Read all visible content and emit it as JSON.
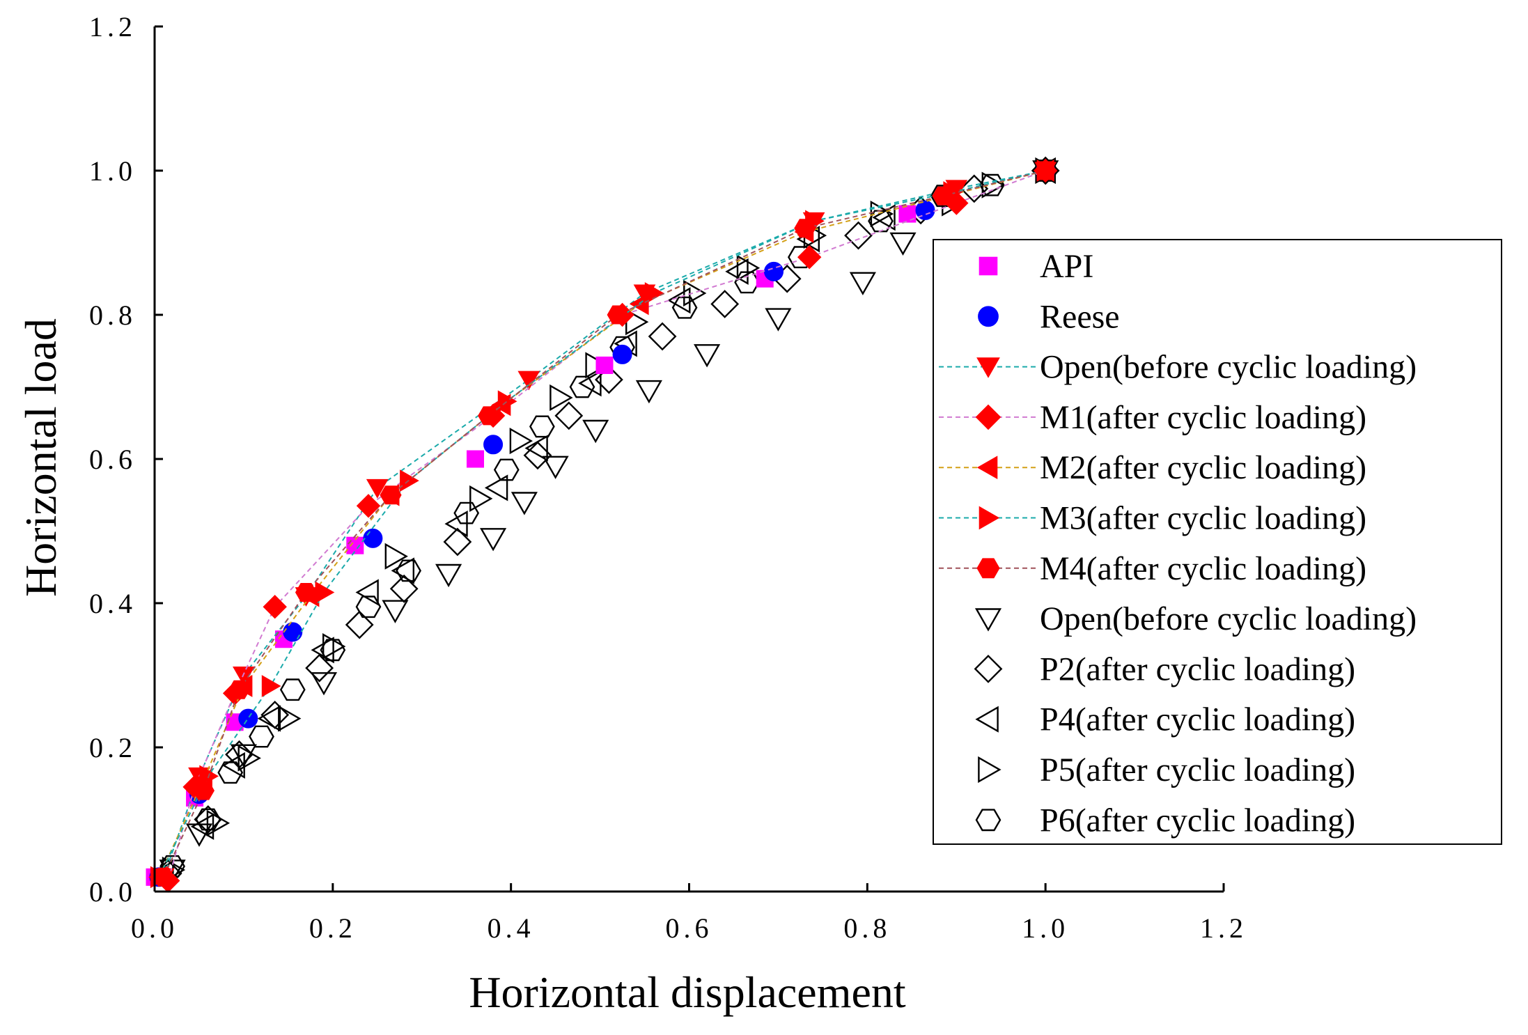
{
  "chart_data": {
    "type": "line",
    "title": "",
    "xlabel": "Horizontal displacement",
    "ylabel": "Horizontal load",
    "xlim": [
      0,
      1.2
    ],
    "ylim": [
      0,
      1.2
    ],
    "xticks": [
      "0.0",
      "0.2",
      "0.4",
      "0.6",
      "0.8",
      "1.0",
      "1.2"
    ],
    "yticks": [
      "0.0",
      "0.2",
      "0.4",
      "0.6",
      "0.8",
      "1.0",
      "1.2"
    ],
    "grid": false,
    "legend_position": "right",
    "series": [
      {
        "name": "API",
        "marker": "square",
        "filled": true,
        "color": "#ff00ff",
        "line": false,
        "x": [
          0.0,
          0.045,
          0.09,
          0.145,
          0.225,
          0.36,
          0.505,
          0.685,
          0.845,
          1.0
        ],
        "y": [
          0.02,
          0.13,
          0.235,
          0.35,
          0.48,
          0.6,
          0.73,
          0.85,
          0.94,
          1.0
        ]
      },
      {
        "name": "Reese",
        "marker": "circle",
        "filled": true,
        "color": "#0000ff",
        "line": false,
        "x": [
          0.005,
          0.05,
          0.105,
          0.155,
          0.245,
          0.38,
          0.525,
          0.695,
          0.865,
          1.0
        ],
        "y": [
          0.02,
          0.135,
          0.24,
          0.36,
          0.49,
          0.62,
          0.745,
          0.86,
          0.945,
          1.0
        ]
      },
      {
        "name": "Open(before cyclic  loading)",
        "marker": "triangle-down",
        "filled": true,
        "color": "#ff0000",
        "line": true,
        "line_color": "#1aaaaa",
        "x": [
          0.01,
          0.05,
          0.1,
          0.17,
          0.25,
          0.42,
          0.55,
          0.74,
          0.9,
          1.0
        ],
        "y": [
          0.02,
          0.16,
          0.3,
          0.41,
          0.56,
          0.71,
          0.83,
          0.93,
          0.975,
          1.0
        ]
      },
      {
        "name": "M1(after cyclic  loading)",
        "marker": "diamond",
        "filled": true,
        "color": "#ff0000",
        "line": true,
        "line_color": "#d17ad1",
        "x": [
          0.015,
          0.045,
          0.09,
          0.135,
          0.24,
          0.38,
          0.525,
          0.735,
          0.9,
          1.0
        ],
        "y": [
          0.015,
          0.145,
          0.275,
          0.395,
          0.535,
          0.66,
          0.8,
          0.88,
          0.955,
          1.0
        ]
      },
      {
        "name": "M2(after cyclic loading)",
        "marker": "triangle-left",
        "filled": true,
        "color": "#ff0000",
        "line": true,
        "line_color": "#d4a017",
        "x": [
          0.005,
          0.055,
          0.1,
          0.175,
          0.265,
          0.39,
          0.545,
          0.73,
          0.89,
          1.0
        ],
        "y": [
          0.02,
          0.155,
          0.285,
          0.41,
          0.55,
          0.675,
          0.815,
          0.915,
          0.965,
          1.0
        ]
      },
      {
        "name": "M3(after cyclic  loading)",
        "marker": "triangle-right",
        "filled": true,
        "color": "#ff0000",
        "line": true,
        "line_color": "#1aaaaa",
        "x": [
          0.005,
          0.06,
          0.13,
          0.19,
          0.285,
          0.395,
          0.56,
          0.74,
          0.895,
          1.0
        ],
        "y": [
          0.02,
          0.16,
          0.285,
          0.415,
          0.57,
          0.68,
          0.83,
          0.93,
          0.97,
          1.0
        ]
      },
      {
        "name": "M4(after cyclic loading)",
        "marker": "hexagon",
        "filled": true,
        "color": "#ff0000",
        "line": true,
        "line_color": "#a0525a",
        "x": [
          0.01,
          0.055,
          0.095,
          0.17,
          0.265,
          0.375,
          0.52,
          0.73,
          0.885,
          1.0
        ],
        "y": [
          0.02,
          0.14,
          0.28,
          0.415,
          0.55,
          0.66,
          0.8,
          0.92,
          0.965,
          1.0
        ]
      },
      {
        "name": "Open(before cyclic  loading)",
        "marker": "triangle-down",
        "filled": false,
        "color": "#000000",
        "line": false,
        "x": [
          0.02,
          0.05,
          0.1,
          0.19,
          0.27,
          0.33,
          0.38,
          0.415,
          0.45,
          0.495,
          0.555,
          0.62,
          0.7,
          0.795,
          0.84,
          1.0
        ],
        "y": [
          0.03,
          0.08,
          0.19,
          0.29,
          0.39,
          0.44,
          0.49,
          0.54,
          0.59,
          0.64,
          0.695,
          0.745,
          0.795,
          0.845,
          0.9,
          1.0
        ]
      },
      {
        "name": "P2(after cyclic  loading)",
        "marker": "diamond",
        "filled": false,
        "color": "#000000",
        "line": false,
        "x": [
          0.015,
          0.06,
          0.095,
          0.135,
          0.185,
          0.23,
          0.28,
          0.34,
          0.43,
          0.465,
          0.51,
          0.57,
          0.64,
          0.71,
          0.79,
          0.86,
          0.92,
          1.0
        ],
        "y": [
          0.025,
          0.1,
          0.19,
          0.245,
          0.31,
          0.37,
          0.42,
          0.485,
          0.605,
          0.66,
          0.71,
          0.77,
          0.815,
          0.85,
          0.91,
          0.945,
          0.975,
          1.0
        ]
      },
      {
        "name": "P4(after cyclic  loading)",
        "marker": "triangle-left",
        "filled": false,
        "color": "#000000",
        "line": false,
        "x": [
          0.01,
          0.055,
          0.09,
          0.13,
          0.19,
          0.24,
          0.28,
          0.34,
          0.385,
          0.43,
          0.49,
          0.53,
          0.59,
          0.655,
          0.735,
          0.82,
          0.89,
          1.0
        ],
        "y": [
          0.025,
          0.09,
          0.175,
          0.24,
          0.335,
          0.415,
          0.445,
          0.51,
          0.56,
          0.615,
          0.705,
          0.76,
          0.82,
          0.86,
          0.905,
          0.935,
          0.965,
          1.0
        ]
      },
      {
        "name": "P5(after cyclic  loading)",
        "marker": "triangle-right",
        "filled": false,
        "color": "#000000",
        "line": false,
        "x": [
          0.02,
          0.07,
          0.105,
          0.15,
          0.2,
          0.27,
          0.365,
          0.41,
          0.455,
          0.495,
          0.54,
          0.605,
          0.665,
          0.74,
          0.815,
          0.895,
          0.94,
          1.0
        ],
        "y": [
          0.03,
          0.095,
          0.185,
          0.24,
          0.34,
          0.465,
          0.545,
          0.625,
          0.685,
          0.73,
          0.79,
          0.83,
          0.865,
          0.91,
          0.94,
          0.955,
          0.98,
          1.0
        ]
      },
      {
        "name": "P6(after cyclic  loading)",
        "marker": "hexagon",
        "filled": false,
        "color": "#000000",
        "line": false,
        "x": [
          0.02,
          0.06,
          0.085,
          0.12,
          0.155,
          0.2,
          0.24,
          0.285,
          0.35,
          0.395,
          0.435,
          0.48,
          0.525,
          0.595,
          0.665,
          0.725,
          0.815,
          0.885,
          0.94,
          1.0
        ],
        "y": [
          0.035,
          0.1,
          0.165,
          0.215,
          0.28,
          0.335,
          0.395,
          0.445,
          0.525,
          0.585,
          0.645,
          0.7,
          0.755,
          0.81,
          0.845,
          0.88,
          0.93,
          0.965,
          0.98,
          1.0
        ]
      }
    ]
  }
}
